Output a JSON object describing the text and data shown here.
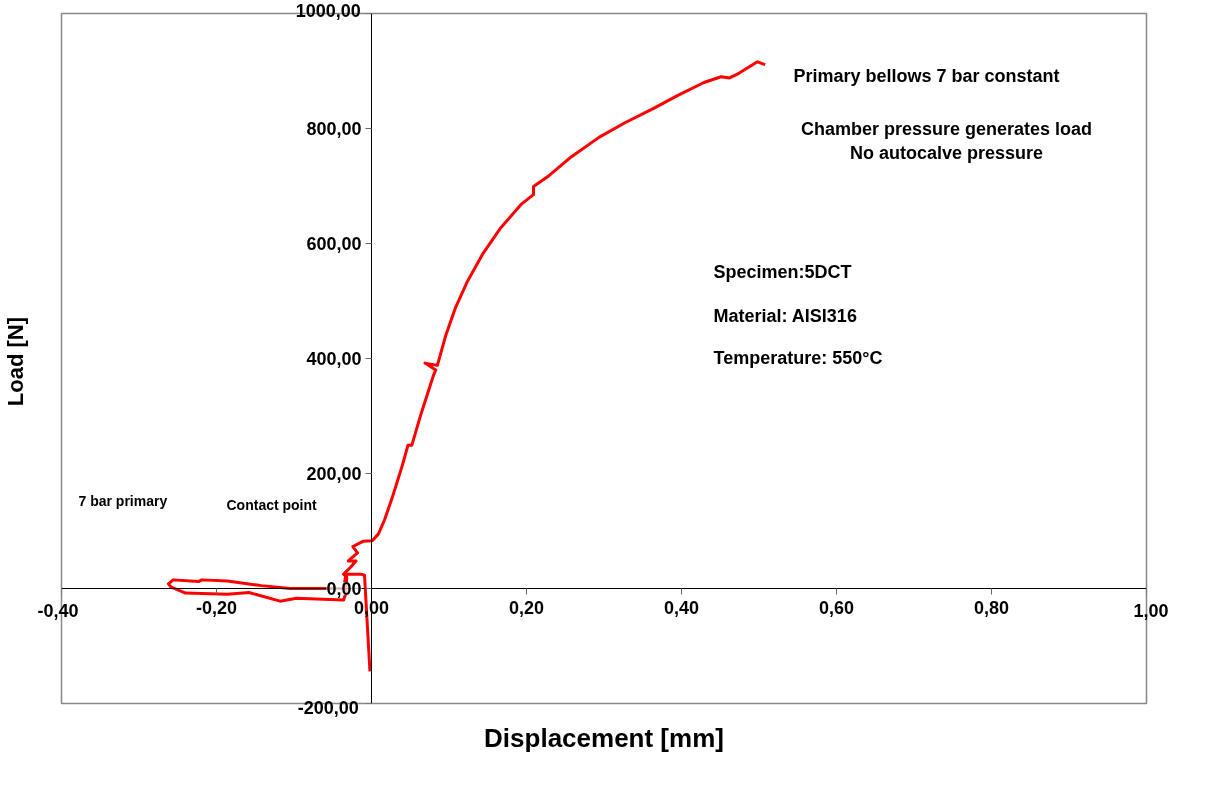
{
  "chart_data": {
    "type": "line",
    "xlabel": "Displacement [mm]",
    "ylabel": "Load  [N]",
    "xlim": [
      -0.4,
      1.0
    ],
    "ylim": [
      -200,
      1000
    ],
    "xticks": [
      {
        "value": -0.4,
        "label": "-0,40"
      },
      {
        "value": -0.2,
        "label": "-0,20"
      },
      {
        "value": 0,
        "label": "0,00"
      },
      {
        "value": 0.2,
        "label": "0,20"
      },
      {
        "value": 0.4,
        "label": "0,40"
      },
      {
        "value": 0.6,
        "label": "0,60"
      },
      {
        "value": 0.8,
        "label": "0,80"
      },
      {
        "value": 1.0,
        "label": "1,00"
      }
    ],
    "yticks": [
      {
        "value": -200,
        "label": "-200,00"
      },
      {
        "value": 0,
        "label": "0,00"
      },
      {
        "value": 200,
        "label": "200,00"
      },
      {
        "value": 400,
        "label": "400,00"
      },
      {
        "value": 600,
        "label": "600,00"
      },
      {
        "value": 800,
        "label": "800,00"
      },
      {
        "value": 1000,
        "label": "1000,00"
      }
    ],
    "grid": false,
    "marker": "none",
    "line_style": "solid",
    "series": [
      {
        "color": "#ff0000",
        "x": [
          -0.002,
          -0.009,
          -0.014,
          -0.033,
          -0.036,
          -0.105,
          -0.142,
          -0.186,
          -0.219,
          -0.223,
          -0.256,
          -0.262,
          -0.259,
          -0.24,
          -0.186,
          -0.158,
          -0.118,
          -0.097,
          -0.036,
          -0.033,
          -0.032,
          -0.036,
          -0.027,
          -0.02,
          -0.03,
          -0.018,
          -0.024,
          -0.011,
          0.001,
          0.009,
          0.017,
          0.027,
          0.04,
          0.047,
          0.052,
          0.064,
          0.08,
          0.083,
          0.069,
          0.085,
          0.096,
          0.108,
          0.123,
          0.144,
          0.166,
          0.193,
          0.209,
          0.209,
          0.229,
          0.258,
          0.294,
          0.327,
          0.364,
          0.396,
          0.429,
          0.451,
          0.462,
          0.474,
          0.498,
          0.508
        ],
        "values": [
          -144,
          23,
          25,
          25,
          0,
          0,
          5,
          13,
          15,
          12,
          15,
          8,
          3,
          -8,
          -10,
          -7,
          -22,
          -17,
          -20,
          -8,
          20,
          25,
          37,
          48,
          48,
          62,
          73,
          82,
          83,
          95,
          120,
          159,
          215,
          249,
          249,
          304,
          371,
          380,
          392,
          388,
          441,
          487,
          532,
          583,
          626,
          668,
          685,
          699,
          718,
          751,
          785,
          810,
          835,
          858,
          880,
          890,
          888,
          896,
          916,
          911
        ]
      }
    ],
    "annotations": [
      "Primary bellows 7 bar constant",
      "Chamber pressure generates load",
      "No autocalve pressure",
      "Specimen:5DCT",
      "Material: AISI316",
      "Temperature: 550°C",
      "7 bar primary",
      "Contact point"
    ]
  }
}
